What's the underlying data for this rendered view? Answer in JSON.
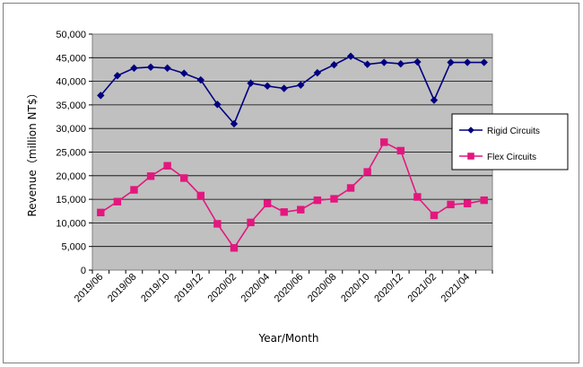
{
  "chart_data": {
    "type": "line",
    "title": "",
    "xlabel": "Year/Month",
    "ylabel": "Revenue（million NT$）",
    "ylim": [
      0,
      50000
    ],
    "yticks": [
      "0",
      "5,000",
      "10,000",
      "15,000",
      "20,000",
      "25,000",
      "30,000",
      "35,000",
      "40,000",
      "45,000",
      "50,000"
    ],
    "x": [
      "2019/06",
      "2019/07",
      "2019/08",
      "2019/09",
      "2019/10",
      "2019/11",
      "2019/12",
      "2020/01",
      "2020/02",
      "2020/03",
      "2020/04",
      "2020/05",
      "2020/06",
      "2020/07",
      "2020/08",
      "2020/09",
      "2020/10",
      "2020/11",
      "2020/12",
      "2021/01",
      "2021/02",
      "2021/03",
      "2021/04",
      "2021/05"
    ],
    "xtick_labels": [
      "2019/06",
      "2019/08",
      "2019/10",
      "2019/12",
      "2020/02",
      "2020/04",
      "2020/06",
      "2020/08",
      "2020/10",
      "2020/12",
      "2021/02",
      "2021/04"
    ],
    "series": [
      {
        "name": "Rigid Circuits",
        "color": "#000080",
        "marker": "diamond",
        "values": [
          37000,
          41200,
          42800,
          43000,
          42800,
          41700,
          40300,
          35100,
          31000,
          39600,
          39000,
          38500,
          39200,
          41800,
          43500,
          45300,
          43600,
          44000,
          43700,
          44100,
          36000,
          44000,
          44000,
          44000
        ]
      },
      {
        "name": "Flex Circuits",
        "color": "#e3177e",
        "marker": "square",
        "values": [
          12200,
          14500,
          17000,
          19900,
          22100,
          19500,
          15800,
          9800,
          4700,
          10100,
          14100,
          12300,
          12800,
          14800,
          15100,
          17400,
          20800,
          27100,
          25300,
          15500,
          11600,
          13900,
          14100,
          14800
        ]
      }
    ],
    "grid": true,
    "legend_position": "right"
  }
}
